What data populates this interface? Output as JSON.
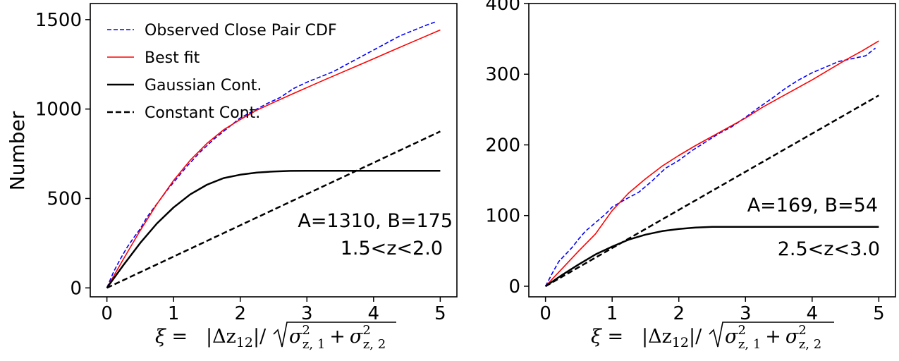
{
  "chart_data": [
    {
      "type": "line",
      "ylabel": "Number",
      "xlim": [
        -0.25,
        5.25
      ],
      "ylim": [
        -50,
        1590
      ],
      "xticks": [
        0,
        1,
        2,
        3,
        4,
        5
      ],
      "yticks": [
        0,
        500,
        1000,
        1500
      ],
      "xtick_labels": [
        "0",
        "1",
        "2",
        "3",
        "4",
        "5"
      ],
      "ytick_labels": [
        "0",
        "500",
        "1000",
        "1500"
      ],
      "xlabel": {
        "lhs": "ξ =",
        "delta_z": "|Δz",
        "delta_z_sub": "12",
        "sep": "|/",
        "sigma1": "σ",
        "sigma1_sup": "2",
        "sigma1_sub": "z, 1",
        "plus": "+",
        "sigma2": "σ",
        "sigma2_sup": "2",
        "sigma2_sub": "z, 2"
      },
      "annotations": [
        "A=1310, B=175",
        "1.5<z<2.0"
      ],
      "legend": {
        "location": "upper-left",
        "entries": [
          {
            "label": "Observed Close Pair CDF",
            "color": "#0000ff",
            "style": "dashed",
            "width": 1.5
          },
          {
            "label": "Best fit",
            "color": "#ff0000",
            "style": "solid",
            "width": 1.5
          },
          {
            "label": "Gaussian Cont.",
            "color": "#000000",
            "style": "solid",
            "width": 2.5
          },
          {
            "label": "Constant Cont.",
            "color": "#000000",
            "style": "dashed",
            "width": 2.5
          }
        ]
      },
      "series": [
        {
          "name": "Observed Close Pair CDF",
          "color": "#0000ff",
          "style": "dashed",
          "x": [
            0,
            0.1,
            0.2,
            0.3,
            0.4,
            0.5,
            0.6,
            0.7,
            0.8,
            0.9,
            1.0,
            1.2,
            1.4,
            1.6,
            1.8,
            2.0,
            2.2,
            2.4,
            2.6,
            2.8,
            3.0,
            3.2,
            3.4,
            3.6,
            3.8,
            4.0,
            4.2,
            4.4,
            4.6,
            4.8,
            4.95
          ],
          "y": [
            0,
            90,
            160,
            225,
            280,
            330,
            395,
            445,
            495,
            545,
            590,
            680,
            760,
            830,
            890,
            950,
            990,
            1030,
            1065,
            1115,
            1150,
            1180,
            1210,
            1250,
            1290,
            1330,
            1370,
            1410,
            1440,
            1470,
            1490
          ]
        },
        {
          "name": "Best fit",
          "color": "#ff0000",
          "style": "solid",
          "x": [
            0,
            0.25,
            0.5,
            0.75,
            1.0,
            1.25,
            1.5,
            1.75,
            2.0,
            2.25,
            2.5,
            2.75,
            3.0,
            3.25,
            3.5,
            3.75,
            4.0,
            4.25,
            4.5,
            4.75,
            5.0
          ],
          "y": [
            0,
            163,
            321,
            469,
            601,
            714,
            808,
            884,
            941,
            994,
            1037,
            1079,
            1120,
            1161,
            1201,
            1241,
            1281,
            1322,
            1362,
            1402,
            1442
          ]
        },
        {
          "name": "Gaussian Cont.",
          "color": "#000000",
          "style": "solid",
          "x": [
            0,
            0.25,
            0.5,
            0.75,
            1.0,
            1.25,
            1.5,
            1.75,
            2.0,
            2.25,
            2.5,
            2.75,
            3.0,
            3.25,
            3.5,
            3.75,
            4.0,
            4.25,
            4.5,
            4.75,
            5.0
          ],
          "y": [
            0,
            129,
            251,
            360,
            450,
            523,
            577,
            614,
            633,
            645,
            651,
            654,
            655,
            655,
            655,
            655,
            655,
            655,
            655,
            655,
            655
          ]
        },
        {
          "name": "Constant Cont.",
          "color": "#000000",
          "style": "dashed",
          "x": [
            0,
            5.0
          ],
          "y": [
            0,
            875
          ]
        }
      ]
    },
    {
      "type": "line",
      "ylabel": "",
      "xlim": [
        -0.25,
        5.25
      ],
      "ylim": [
        -15,
        400
      ],
      "xticks": [
        0,
        1,
        2,
        3,
        4,
        5
      ],
      "yticks": [
        0,
        100,
        200,
        300,
        400
      ],
      "xtick_labels": [
        "0",
        "1",
        "2",
        "3",
        "4",
        "5"
      ],
      "ytick_labels": [
        "0",
        "100",
        "200",
        "300",
        "400"
      ],
      "xlabel": {
        "lhs": "ξ =",
        "delta_z": "|Δz",
        "delta_z_sub": "12",
        "sep": "|/",
        "sigma1": "σ",
        "sigma1_sup": "2",
        "sigma1_sub": "z, 1",
        "plus": "+",
        "sigma2": "σ",
        "sigma2_sup": "2",
        "sigma2_sub": "z, 2"
      },
      "annotations": [
        "A=169, B=54",
        "2.5<z<3.0"
      ],
      "series": [
        {
          "name": "Observed Close Pair CDF",
          "color": "#0000ff",
          "style": "dashed",
          "x": [
            0,
            0.1,
            0.2,
            0.3,
            0.4,
            0.5,
            0.6,
            0.7,
            0.8,
            0.9,
            1.0,
            1.2,
            1.4,
            1.6,
            1.8,
            2.0,
            2.2,
            2.4,
            2.6,
            2.8,
            3.0,
            3.2,
            3.4,
            3.6,
            3.8,
            4.0,
            4.2,
            4.4,
            4.6,
            4.8,
            4.95
          ],
          "y": [
            0,
            18,
            35,
            45,
            55,
            67,
            78,
            86,
            94,
            102,
            112,
            123,
            133,
            149,
            167,
            178,
            192,
            204,
            216,
            226,
            239,
            253,
            266,
            280,
            292,
            302,
            310,
            318,
            322,
            326,
            337
          ]
        },
        {
          "name": "Best fit",
          "color": "#ff0000",
          "style": "solid",
          "x": [
            0,
            0.25,
            0.5,
            0.75,
            1.0,
            1.25,
            1.5,
            1.75,
            2.0,
            2.25,
            2.5,
            2.75,
            3.0,
            3.25,
            3.5,
            3.75,
            4.0,
            4.25,
            4.5,
            4.75,
            5.0
          ],
          "y": [
            0,
            25,
            50,
            74,
            107,
            132,
            152,
            170,
            185,
            199,
            212,
            225,
            238,
            253,
            266,
            279,
            292,
            306,
            320,
            333,
            347
          ]
        },
        {
          "name": "Gaussian Cont.",
          "color": "#000000",
          "style": "solid",
          "x": [
            0,
            0.25,
            0.5,
            0.75,
            1.0,
            1.25,
            1.5,
            1.75,
            2.0,
            2.25,
            2.5,
            2.75,
            3.0,
            3.5,
            4.0,
            4.5,
            5.0
          ],
          "y": [
            0,
            16,
            31,
            45,
            56,
            66,
            73,
            78,
            81,
            83,
            84,
            84,
            84,
            84,
            84,
            84,
            84
          ]
        },
        {
          "name": "Constant Cont.",
          "color": "#000000",
          "style": "dashed",
          "x": [
            0,
            5.0
          ],
          "y": [
            0,
            270
          ]
        }
      ]
    }
  ]
}
